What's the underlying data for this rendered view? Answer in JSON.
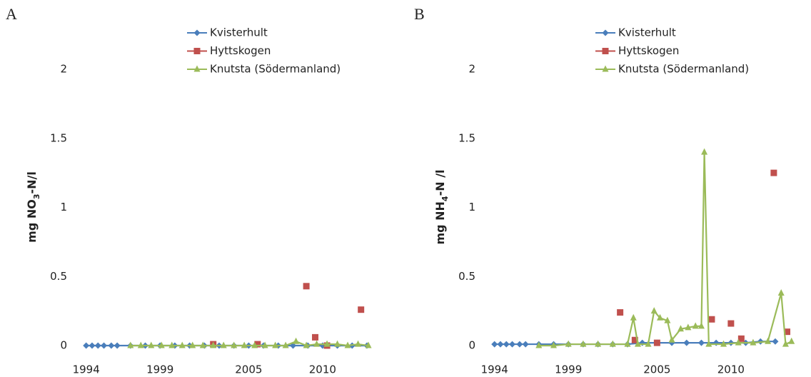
{
  "chart_data": [
    {
      "type": "line",
      "panel": "A",
      "y_label": [
        "mg NO",
        "3",
        "-N/l"
      ],
      "xlim": [
        1993,
        2014.5
      ],
      "xticks": [
        1994,
        1999,
        2005,
        2010
      ],
      "ylim": [
        0,
        2
      ],
      "yticks": [
        0,
        0.5,
        1,
        1.5,
        2
      ],
      "series": [
        {
          "name": "Kvisterhult",
          "color": "#4a7ebb",
          "marker": "diamond",
          "x": [
            1994,
            1994.4,
            1994.8,
            1995.2,
            1995.7,
            1996.1,
            1997,
            1998,
            1999,
            2000,
            2001,
            2002,
            2003,
            2004,
            2005,
            2006,
            2007,
            2008,
            2009,
            2010,
            2011,
            2012,
            2013
          ],
          "values": [
            0,
            0,
            0,
            0,
            0,
            0,
            0,
            0,
            0,
            0,
            0,
            0,
            0,
            0,
            0,
            0,
            0,
            0,
            0,
            0,
            0,
            0,
            0
          ]
        },
        {
          "name": "Hyttskogen",
          "color": "#c0504d",
          "marker": "square",
          "line": false,
          "x": [
            2002.6,
            2005.6,
            2008.9,
            2009.5,
            2010.3,
            2012.6
          ],
          "values": [
            0.01,
            0.01,
            0.43,
            0.06,
            0,
            0.26
          ]
        },
        {
          "name": "Knutsta (Södermanland)",
          "color": "#9bbb59",
          "marker": "triangle",
          "x": [
            1997,
            1997.7,
            1998.4,
            1999.1,
            1999.8,
            2000.5,
            2001.2,
            2001.9,
            2002.6,
            2003.3,
            2004,
            2004.7,
            2005.4,
            2006.1,
            2006.8,
            2007.5,
            2008.2,
            2008.9,
            2009.6,
            2010.3,
            2011,
            2011.7,
            2012.4,
            2013.1
          ],
          "values": [
            0,
            0,
            0,
            0,
            0,
            0,
            0,
            0,
            0,
            0,
            0,
            0,
            0,
            0,
            0,
            0,
            0.03,
            0,
            0.01,
            0.01,
            0.01,
            0,
            0.01,
            0
          ]
        }
      ]
    },
    {
      "type": "line",
      "panel": "B",
      "y_label": [
        "mg NH",
        "4",
        "-N /l"
      ],
      "xlim": [
        1993,
        2014.5
      ],
      "xticks": [
        1994,
        1999,
        2005,
        2010
      ],
      "ylim": [
        0,
        2
      ],
      "yticks": [
        0,
        0.5,
        1,
        1.5,
        2
      ],
      "series": [
        {
          "name": "Kvisterhult",
          "color": "#4a7ebb",
          "marker": "diamond",
          "x": [
            1994,
            1994.4,
            1994.8,
            1995.2,
            1995.7,
            1996.1,
            1997,
            1998,
            1999,
            2000,
            2001,
            2002,
            2003,
            2004,
            2005,
            2006,
            2007,
            2008,
            2009,
            2010,
            2011,
            2012,
            2013
          ],
          "values": [
            0.01,
            0.01,
            0.01,
            0.01,
            0.01,
            0.01,
            0.01,
            0.01,
            0.01,
            0.01,
            0.01,
            0.01,
            0.01,
            0.02,
            0.02,
            0.02,
            0.02,
            0.02,
            0.02,
            0.02,
            0.02,
            0.03,
            0.03
          ]
        },
        {
          "name": "Hyttskogen",
          "color": "#c0504d",
          "marker": "square",
          "line": false,
          "x": [
            2002.5,
            2003.5,
            2005,
            2008.7,
            2010,
            2010.7,
            2012.9,
            2013.8
          ],
          "values": [
            0.24,
            0.04,
            0.02,
            0.19,
            0.16,
            0.05,
            1.25,
            0.1
          ]
        },
        {
          "name": "Knutsta (Södermanland)",
          "color": "#9bbb59",
          "marker": "triangle",
          "x": [
            1997,
            1998,
            1999,
            2000,
            2001,
            2002,
            2003,
            2003.4,
            2003.7,
            2004.4,
            2004.8,
            2005.2,
            2005.7,
            2006,
            2006.6,
            2007.1,
            2007.6,
            2008,
            2008.2,
            2008.5,
            2009.5,
            2010.5,
            2011.5,
            2012.5,
            2013.4,
            2013.7,
            2014.1
          ],
          "values": [
            0,
            0,
            0.01,
            0.01,
            0.01,
            0.01,
            0.01,
            0.2,
            0.01,
            0.01,
            0.25,
            0.2,
            0.18,
            0.04,
            0.12,
            0.13,
            0.14,
            0.14,
            1.4,
            0.01,
            0.01,
            0.02,
            0.02,
            0.03,
            0.38,
            0.01,
            0.03
          ]
        }
      ]
    }
  ]
}
